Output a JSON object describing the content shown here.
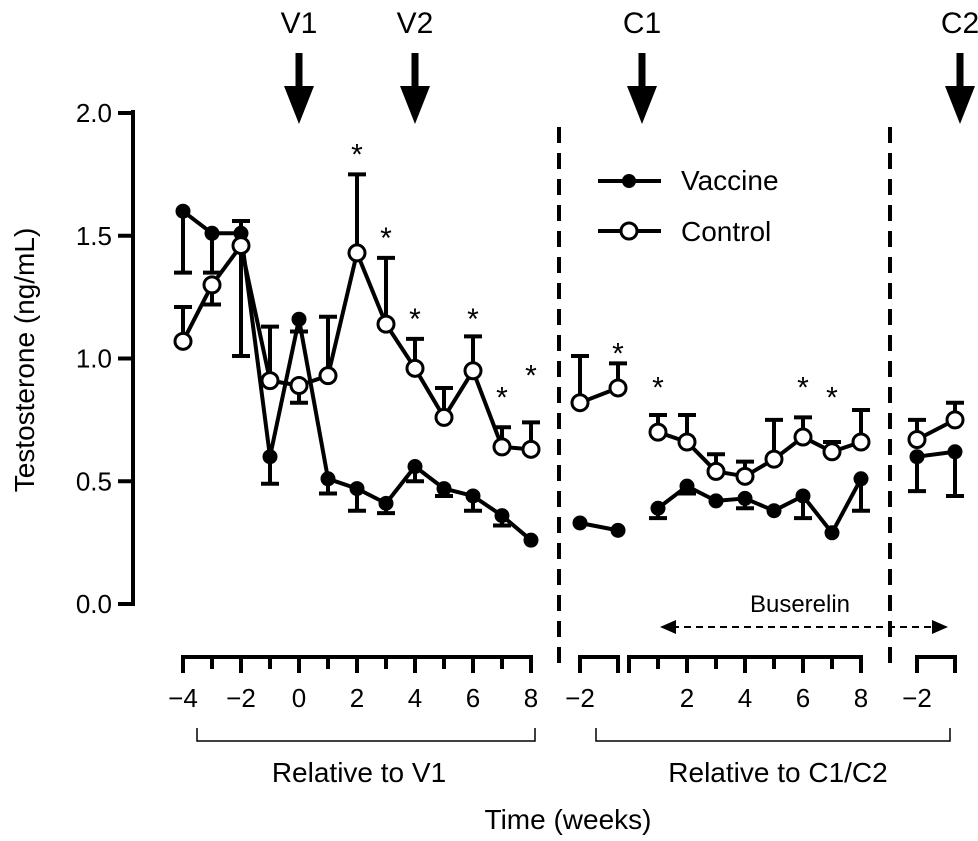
{
  "chart_data": {
    "type": "line",
    "xlabel": "Time (weeks)",
    "ylabel": "Testosterone (ng/mL)",
    "ylim": [
      0,
      2.0
    ],
    "y_ticks": [
      "0.0",
      "0.5",
      "1.0",
      "1.5",
      "2.0"
    ],
    "y_tick_values": [
      0,
      0.5,
      1.0,
      1.5,
      2.0
    ],
    "grid": false,
    "legend_position": "top-center",
    "panels": [
      {
        "group_label": "Relative to V1",
        "x_ticks": [
          "-4",
          "-2",
          "0",
          "2",
          "4",
          "6",
          "8"
        ],
        "x_tick_values": [
          -4,
          -2,
          0,
          2,
          4,
          6,
          8
        ],
        "series": [
          {
            "name": "Vaccine",
            "marker": "filled",
            "points": [
              [
                -4,
                1.6
              ],
              [
                -3,
                1.51
              ],
              [
                -2,
                1.51
              ],
              [
                -1,
                0.6
              ],
              [
                0,
                1.16
              ],
              [
                1,
                0.51
              ],
              [
                2,
                0.47
              ],
              [
                3,
                0.41
              ],
              [
                4,
                0.56
              ],
              [
                5,
                0.47
              ],
              [
                6,
                0.44
              ],
              [
                7,
                0.36
              ],
              [
                8,
                0.26
              ]
            ],
            "errors": [
              [
                -4,
                1.35
              ],
              [
                -3,
                1.35
              ],
              [
                -2,
                1.56
              ],
              [
                -1,
                0.49
              ],
              [
                0,
                1.11
              ],
              [
                1,
                0.45
              ],
              [
                2,
                0.38
              ],
              [
                3,
                0.37
              ],
              [
                4,
                0.5
              ],
              [
                5,
                0.44
              ],
              [
                6,
                0.38
              ],
              [
                7,
                0.32
              ],
              [
                8,
                0.26
              ]
            ]
          },
          {
            "name": "Control",
            "marker": "open",
            "points": [
              [
                -4,
                1.07
              ],
              [
                -3,
                1.3
              ],
              [
                -2,
                1.46
              ],
              [
                -1,
                0.91
              ],
              [
                0,
                0.89
              ],
              [
                1,
                0.93
              ],
              [
                2,
                1.43
              ],
              [
                3,
                1.14
              ],
              [
                4,
                0.96
              ],
              [
                5,
                0.76
              ],
              [
                6,
                0.95
              ],
              [
                7,
                0.64
              ],
              [
                8,
                0.63
              ]
            ],
            "errors": [
              [
                -4,
                1.21
              ],
              [
                -3,
                1.22
              ],
              [
                -2,
                1.01
              ],
              [
                -1,
                1.13
              ],
              [
                0,
                0.82
              ],
              [
                1,
                1.17
              ],
              [
                2,
                1.75
              ],
              [
                3,
                1.41
              ],
              [
                4,
                1.08
              ],
              [
                5,
                0.88
              ],
              [
                6,
                1.09
              ],
              [
                7,
                0.72
              ],
              [
                8,
                0.74
              ]
            ]
          }
        ],
        "stars": [
          [
            2,
            1.88
          ],
          [
            3,
            1.54
          ],
          [
            4,
            1.21
          ],
          [
            6,
            1.21
          ],
          [
            7,
            0.89
          ],
          [
            8,
            0.98
          ]
        ]
      },
      {
        "group_label": "Relative to C1/C2",
        "x_ticks": [
          "-2"
        ],
        "x_tick_values": [
          -2
        ],
        "series": [
          {
            "name": "Vaccine",
            "marker": "filled",
            "points": [
              [
                -2,
                0.33
              ],
              [
                -1,
                0.3
              ]
            ],
            "errors": [
              [
                -2,
                0.33
              ],
              [
                -1,
                0.3
              ]
            ]
          },
          {
            "name": "Control",
            "marker": "open",
            "points": [
              [
                -2,
                0.82
              ],
              [
                -1,
                0.88
              ]
            ],
            "errors": [
              [
                -2,
                1.01
              ],
              [
                -1,
                0.98
              ]
            ]
          }
        ],
        "stars": [
          [
            -1,
            1.07
          ]
        ]
      },
      {
        "group_label": "",
        "x_ticks": [
          "2",
          "4",
          "6",
          "8"
        ],
        "x_tick_values": [
          2,
          4,
          6,
          8
        ],
        "series": [
          {
            "name": "Vaccine",
            "marker": "filled",
            "points": [
              [
                1,
                0.39
              ],
              [
                2,
                0.48
              ],
              [
                3,
                0.42
              ],
              [
                4,
                0.43
              ],
              [
                5,
                0.38
              ],
              [
                6,
                0.44
              ],
              [
                7,
                0.29
              ],
              [
                8,
                0.51
              ]
            ],
            "errors": [
              [
                1,
                0.35
              ],
              [
                2,
                0.45
              ],
              [
                3,
                0.42
              ],
              [
                4,
                0.39
              ],
              [
                5,
                0.38
              ],
              [
                6,
                0.35
              ],
              [
                7,
                0.29
              ],
              [
                8,
                0.38
              ]
            ]
          },
          {
            "name": "Control",
            "marker": "open",
            "points": [
              [
                1,
                0.7
              ],
              [
                2,
                0.66
              ],
              [
                3,
                0.54
              ],
              [
                4,
                0.52
              ],
              [
                5,
                0.59
              ],
              [
                6,
                0.68
              ],
              [
                7,
                0.62
              ],
              [
                8,
                0.66
              ]
            ],
            "errors": [
              [
                1,
                0.77
              ],
              [
                2,
                0.77
              ],
              [
                3,
                0.61
              ],
              [
                4,
                0.58
              ],
              [
                5,
                0.75
              ],
              [
                6,
                0.76
              ],
              [
                7,
                0.66
              ],
              [
                8,
                0.79
              ]
            ]
          }
        ],
        "stars": [
          [
            1,
            0.93
          ],
          [
            6,
            0.93
          ],
          [
            7,
            0.89
          ]
        ]
      },
      {
        "group_label": "",
        "x_ticks": [
          "-2"
        ],
        "x_tick_values": [
          -2
        ],
        "series": [
          {
            "name": "Vaccine",
            "marker": "filled",
            "points": [
              [
                -2,
                0.6
              ],
              [
                -1,
                0.62
              ]
            ],
            "errors": [
              [
                -2,
                0.46
              ],
              [
                -1,
                0.44
              ]
            ]
          },
          {
            "name": "Control",
            "marker": "open",
            "points": [
              [
                -2,
                0.67
              ],
              [
                -1,
                0.75
              ]
            ],
            "errors": [
              [
                -2,
                0.75
              ],
              [
                -1,
                0.82
              ]
            ]
          }
        ],
        "stars": []
      }
    ],
    "events": [
      {
        "label": "V1",
        "panel": 0,
        "x": 0
      },
      {
        "label": "V2",
        "panel": 0,
        "x": 4
      },
      {
        "label": "C1",
        "panel": 2,
        "x": 0
      },
      {
        "label": "C2",
        "panel": 3,
        "x": 0
      }
    ],
    "treatment": {
      "label": "Buserelin"
    },
    "annotations": {
      "star": "*"
    }
  }
}
